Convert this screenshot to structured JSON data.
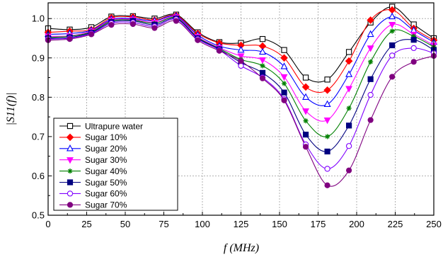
{
  "chart_data": {
    "type": "line",
    "xlabel": "f (MHz)",
    "ylabel": "|S11(f)|",
    "xlim": [
      0,
      250
    ],
    "ylim": [
      0.5,
      1.04
    ],
    "xticks": [
      0,
      25,
      50,
      75,
      100,
      125,
      150,
      175,
      200,
      225,
      250
    ],
    "yticks": [
      0.5,
      0.6,
      0.7,
      0.8,
      0.9,
      1.0
    ],
    "xtick_labels": [
      "0",
      "25",
      "50",
      "75",
      "100",
      "125",
      "150",
      "175",
      "200",
      "225",
      "250"
    ],
    "ytick_labels": [
      "0.5",
      "0.6",
      "0.7",
      "0.8",
      "0.9",
      "1.0"
    ],
    "grid": true,
    "legend_position": "lower-left",
    "x": [
      0,
      14,
      28,
      41,
      55,
      69,
      83,
      97,
      111,
      125,
      139,
      153,
      167,
      181,
      195,
      209,
      223,
      237,
      250
    ],
    "series": [
      {
        "name": "Ultrapure water",
        "color": "#000000",
        "marker": "square-open",
        "values": [
          0.975,
          0.972,
          0.978,
          1.005,
          1.006,
          1.0,
          1.01,
          0.965,
          0.94,
          0.938,
          0.948,
          0.92,
          0.85,
          0.845,
          0.915,
          0.99,
          1.03,
          0.985,
          0.95
        ]
      },
      {
        "name": "Sugar 10%",
        "color": "#ff0000",
        "marker": "diamond-filled",
        "values": [
          0.965,
          0.968,
          0.972,
          1.002,
          1.004,
          0.996,
          1.008,
          0.962,
          0.938,
          0.932,
          0.93,
          0.9,
          0.826,
          0.818,
          0.892,
          0.996,
          1.022,
          0.975,
          0.945
        ]
      },
      {
        "name": "Sugar 20%",
        "color": "#0000ff",
        "marker": "triangle-up-open",
        "values": [
          0.96,
          0.962,
          0.97,
          0.998,
          1.0,
          0.994,
          1.006,
          0.958,
          0.93,
          0.92,
          0.915,
          0.878,
          0.8,
          0.782,
          0.858,
          0.96,
          1.005,
          0.97,
          0.94
        ]
      },
      {
        "name": "Sugar 30%",
        "color": "#ff00ff",
        "marker": "triangle-down-filled",
        "values": [
          0.955,
          0.956,
          0.968,
          0.996,
          0.998,
          0.99,
          1.004,
          0.954,
          0.926,
          0.905,
          0.895,
          0.852,
          0.765,
          0.742,
          0.822,
          0.925,
          0.985,
          0.96,
          0.932
        ]
      },
      {
        "name": "Sugar 40%",
        "color": "#008000",
        "marker": "asterisk",
        "values": [
          0.952,
          0.955,
          0.966,
          0.994,
          0.996,
          0.988,
          1.002,
          0.952,
          0.924,
          0.896,
          0.88,
          0.835,
          0.74,
          0.7,
          0.772,
          0.89,
          0.968,
          0.955,
          0.928
        ]
      },
      {
        "name": "Sugar 50%",
        "color": "#000080",
        "marker": "square-filled",
        "values": [
          0.95,
          0.952,
          0.964,
          0.991,
          0.994,
          0.984,
          1.0,
          0.95,
          0.922,
          0.888,
          0.862,
          0.812,
          0.705,
          0.662,
          0.728,
          0.846,
          0.932,
          0.946,
          0.92
        ]
      },
      {
        "name": "Sugar 60%",
        "color": "#8000ff",
        "marker": "circle-open",
        "values": [
          0.948,
          0.95,
          0.962,
          0.988,
          0.99,
          0.98,
          0.998,
          0.948,
          0.92,
          0.88,
          0.85,
          0.795,
          0.68,
          0.618,
          0.676,
          0.806,
          0.906,
          0.925,
          0.912
        ]
      },
      {
        "name": "Sugar 70%",
        "color": "#800080",
        "marker": "circle-filled",
        "values": [
          0.945,
          0.948,
          0.96,
          0.984,
          0.986,
          0.976,
          0.994,
          0.945,
          0.918,
          0.892,
          0.848,
          0.792,
          0.674,
          0.576,
          0.614,
          0.742,
          0.852,
          0.89,
          0.905
        ]
      }
    ]
  }
}
